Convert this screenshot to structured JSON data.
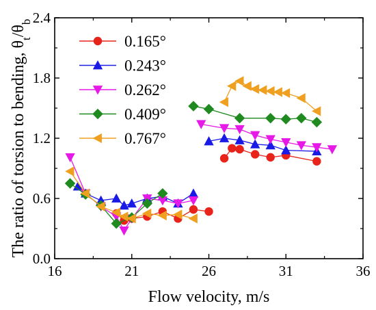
{
  "chart_data": {
    "type": "scatter",
    "xlabel": "Flow velocity, m/s",
    "ylabel": "The ratio of torsion to bending, θt/θb",
    "ylabel_parts": {
      "prefix": "The ratio of torsion to bending, θ",
      "sub1": "t",
      "mid": "/θ",
      "sub2": "b"
    },
    "xlim": [
      16,
      36
    ],
    "ylim": [
      0.0,
      2.4
    ],
    "xticks": [
      "16",
      "21",
      "26",
      "31",
      "36"
    ],
    "yticks": [
      "0.0",
      "0.6",
      "1.2",
      "1.8",
      "2.4"
    ],
    "xtick_values": [
      16,
      21,
      26,
      31,
      36
    ],
    "ytick_values": [
      0.0,
      0.6,
      1.2,
      1.8,
      2.4
    ],
    "grid": false,
    "legend_position": "top-left",
    "series": [
      {
        "name": "0.165°",
        "color": "#e8231a",
        "marker": "circle",
        "segments": [
          {
            "x": [
              20.0,
              20.5,
              21.0,
              22.0,
              23.0,
              24.0,
              25.0,
              26.0
            ],
            "y": [
              0.45,
              0.38,
              0.4,
              0.42,
              0.47,
              0.4,
              0.49,
              0.47
            ]
          },
          {
            "x": [
              27.0,
              27.5,
              28.0,
              29.0,
              30.0,
              31.0,
              33.0
            ],
            "y": [
              1.0,
              1.1,
              1.09,
              1.04,
              1.01,
              1.03,
              0.97
            ]
          }
        ]
      },
      {
        "name": "0.243°",
        "color": "#1a1ae6",
        "marker": "triangle-up",
        "segments": [
          {
            "x": [
              17.5,
              18.0,
              19.0,
              20.0,
              20.5,
              21.0,
              22.0,
              23.0,
              24.0,
              25.0
            ],
            "y": [
              0.72,
              0.65,
              0.58,
              0.6,
              0.53,
              0.55,
              0.6,
              0.62,
              0.55,
              0.65
            ]
          },
          {
            "x": [
              26.0,
              27.0,
              28.0,
              29.0,
              30.0,
              31.0,
              33.0
            ],
            "y": [
              1.17,
              1.2,
              1.18,
              1.14,
              1.13,
              1.08,
              1.07
            ]
          }
        ]
      },
      {
        "name": "0.262°",
        "color": "#e619e6",
        "marker": "triangle-down",
        "segments": [
          {
            "x": [
              17.0,
              18.0,
              19.0,
              20.0,
              20.5,
              21.0,
              22.0,
              23.0,
              24.0,
              25.0
            ],
            "y": [
              1.01,
              0.65,
              0.52,
              0.42,
              0.28,
              0.4,
              0.6,
              0.58,
              0.55,
              0.58
            ]
          },
          {
            "x": [
              25.5,
              27.0,
              28.0,
              29.0,
              30.0,
              31.0,
              32.0,
              33.0,
              34.0
            ],
            "y": [
              1.34,
              1.3,
              1.29,
              1.23,
              1.19,
              1.16,
              1.13,
              1.11,
              1.09
            ]
          }
        ]
      },
      {
        "name": "0.409°",
        "color": "#1f8a1f",
        "marker": "diamond",
        "segments": [
          {
            "x": [
              17.0,
              18.0,
              19.0,
              20.0,
              21.0,
              22.0,
              23.0
            ],
            "y": [
              0.75,
              0.64,
              0.53,
              0.35,
              0.41,
              0.55,
              0.65
            ]
          },
          {
            "x": [
              25.0,
              26.0,
              28.0,
              30.0,
              31.0,
              32.0,
              33.0
            ],
            "y": [
              1.52,
              1.49,
              1.4,
              1.4,
              1.39,
              1.4,
              1.36
            ]
          }
        ]
      },
      {
        "name": "0.767°",
        "color": "#f0a020",
        "marker": "triangle-left",
        "segments": [
          {
            "x": [
              17.0,
              18.0,
              19.0,
              20.0,
              20.5,
              21.0,
              22.0,
              23.0,
              24.0,
              25.0
            ],
            "y": [
              0.87,
              0.65,
              0.52,
              0.46,
              0.42,
              0.4,
              0.45,
              0.43,
              0.44,
              0.4
            ]
          },
          {
            "x": [
              27.0,
              27.5,
              28.0,
              28.5,
              29.0,
              29.5,
              30.0,
              30.5,
              31.0,
              32.0,
              33.0
            ],
            "y": [
              1.56,
              1.72,
              1.77,
              1.72,
              1.69,
              1.68,
              1.67,
              1.66,
              1.65,
              1.6,
              1.47
            ]
          }
        ]
      }
    ]
  }
}
